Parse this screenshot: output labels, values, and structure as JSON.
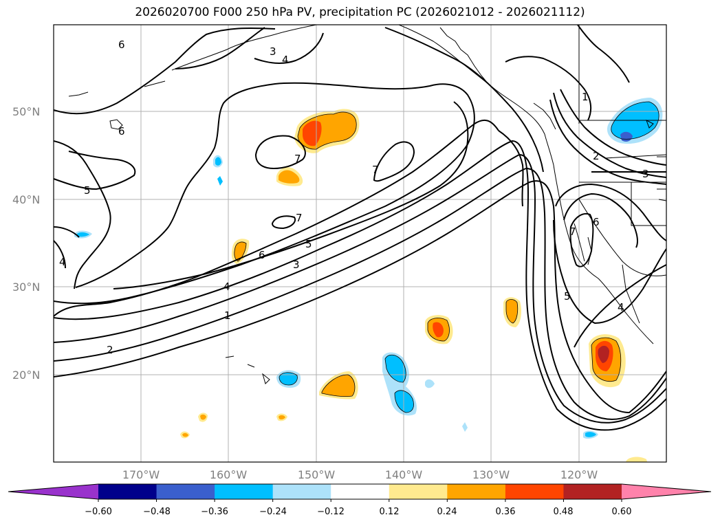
{
  "title": "2026020700 F000 250 hPa PV, precipitation PC (2026021012 - 2026021112)",
  "map": {
    "lat_labels": [
      "50°N",
      "40°N",
      "30°N",
      "20°N"
    ],
    "lon_labels": [
      "170°W",
      "160°W",
      "150°W",
      "140°W",
      "130°W",
      "120°W"
    ],
    "extent": {
      "lon_min": -180,
      "lon_max": -110,
      "lat_min": 10,
      "lat_max": 60
    },
    "pv_contour_labels": [
      "1",
      "2",
      "3",
      "4",
      "5",
      "6",
      "7"
    ]
  },
  "colorbar": {
    "ticks": [
      "−0.60",
      "−0.48",
      "−0.36",
      "−0.24",
      "−0.12",
      "0.12",
      "0.24",
      "0.36",
      "0.48",
      "0.60"
    ],
    "colors": [
      "#9932cc",
      "#00008b",
      "#3a5fcd",
      "#00bfff",
      "#ade2fa",
      "#ffffff",
      "#ffea8f",
      "#ffa500",
      "#ff4500",
      "#b22222",
      "#ff82ab"
    ]
  }
}
